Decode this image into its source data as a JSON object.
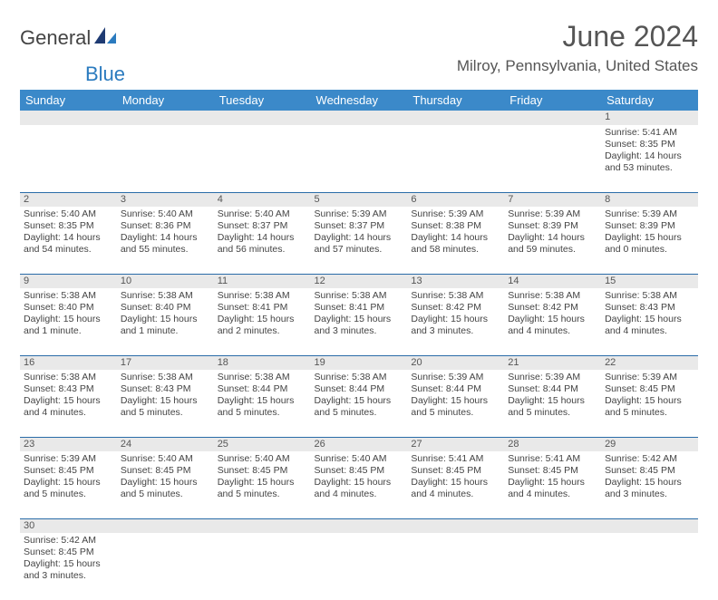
{
  "brand": {
    "part1": "General",
    "part2": "Blue"
  },
  "title": "June 2024",
  "location": "Milroy, Pennsylvania, United States",
  "colors": {
    "header_bg": "#3b89c9",
    "row_divider": "#2a6ca8",
    "daynum_bg": "#e9e9e9",
    "brand_blue": "#2b7bbf",
    "text": "#444444"
  },
  "typography": {
    "title_fontsize": 32,
    "location_fontsize": 17,
    "dayheader_fontsize": 13,
    "cell_fontsize": 10.5
  },
  "calendar": {
    "day_headers": [
      "Sunday",
      "Monday",
      "Tuesday",
      "Wednesday",
      "Thursday",
      "Friday",
      "Saturday"
    ],
    "weeks": [
      [
        null,
        null,
        null,
        null,
        null,
        null,
        {
          "n": "1",
          "sunrise": "5:41 AM",
          "sunset": "8:35 PM",
          "daylight": "14 hours and 53 minutes."
        }
      ],
      [
        {
          "n": "2",
          "sunrise": "5:40 AM",
          "sunset": "8:35 PM",
          "daylight": "14 hours and 54 minutes."
        },
        {
          "n": "3",
          "sunrise": "5:40 AM",
          "sunset": "8:36 PM",
          "daylight": "14 hours and 55 minutes."
        },
        {
          "n": "4",
          "sunrise": "5:40 AM",
          "sunset": "8:37 PM",
          "daylight": "14 hours and 56 minutes."
        },
        {
          "n": "5",
          "sunrise": "5:39 AM",
          "sunset": "8:37 PM",
          "daylight": "14 hours and 57 minutes."
        },
        {
          "n": "6",
          "sunrise": "5:39 AM",
          "sunset": "8:38 PM",
          "daylight": "14 hours and 58 minutes."
        },
        {
          "n": "7",
          "sunrise": "5:39 AM",
          "sunset": "8:39 PM",
          "daylight": "14 hours and 59 minutes."
        },
        {
          "n": "8",
          "sunrise": "5:39 AM",
          "sunset": "8:39 PM",
          "daylight": "15 hours and 0 minutes."
        }
      ],
      [
        {
          "n": "9",
          "sunrise": "5:38 AM",
          "sunset": "8:40 PM",
          "daylight": "15 hours and 1 minute."
        },
        {
          "n": "10",
          "sunrise": "5:38 AM",
          "sunset": "8:40 PM",
          "daylight": "15 hours and 1 minute."
        },
        {
          "n": "11",
          "sunrise": "5:38 AM",
          "sunset": "8:41 PM",
          "daylight": "15 hours and 2 minutes."
        },
        {
          "n": "12",
          "sunrise": "5:38 AM",
          "sunset": "8:41 PM",
          "daylight": "15 hours and 3 minutes."
        },
        {
          "n": "13",
          "sunrise": "5:38 AM",
          "sunset": "8:42 PM",
          "daylight": "15 hours and 3 minutes."
        },
        {
          "n": "14",
          "sunrise": "5:38 AM",
          "sunset": "8:42 PM",
          "daylight": "15 hours and 4 minutes."
        },
        {
          "n": "15",
          "sunrise": "5:38 AM",
          "sunset": "8:43 PM",
          "daylight": "15 hours and 4 minutes."
        }
      ],
      [
        {
          "n": "16",
          "sunrise": "5:38 AM",
          "sunset": "8:43 PM",
          "daylight": "15 hours and 4 minutes."
        },
        {
          "n": "17",
          "sunrise": "5:38 AM",
          "sunset": "8:43 PM",
          "daylight": "15 hours and 5 minutes."
        },
        {
          "n": "18",
          "sunrise": "5:38 AM",
          "sunset": "8:44 PM",
          "daylight": "15 hours and 5 minutes."
        },
        {
          "n": "19",
          "sunrise": "5:38 AM",
          "sunset": "8:44 PM",
          "daylight": "15 hours and 5 minutes."
        },
        {
          "n": "20",
          "sunrise": "5:39 AM",
          "sunset": "8:44 PM",
          "daylight": "15 hours and 5 minutes."
        },
        {
          "n": "21",
          "sunrise": "5:39 AM",
          "sunset": "8:44 PM",
          "daylight": "15 hours and 5 minutes."
        },
        {
          "n": "22",
          "sunrise": "5:39 AM",
          "sunset": "8:45 PM",
          "daylight": "15 hours and 5 minutes."
        }
      ],
      [
        {
          "n": "23",
          "sunrise": "5:39 AM",
          "sunset": "8:45 PM",
          "daylight": "15 hours and 5 minutes."
        },
        {
          "n": "24",
          "sunrise": "5:40 AM",
          "sunset": "8:45 PM",
          "daylight": "15 hours and 5 minutes."
        },
        {
          "n": "25",
          "sunrise": "5:40 AM",
          "sunset": "8:45 PM",
          "daylight": "15 hours and 5 minutes."
        },
        {
          "n": "26",
          "sunrise": "5:40 AM",
          "sunset": "8:45 PM",
          "daylight": "15 hours and 4 minutes."
        },
        {
          "n": "27",
          "sunrise": "5:41 AM",
          "sunset": "8:45 PM",
          "daylight": "15 hours and 4 minutes."
        },
        {
          "n": "28",
          "sunrise": "5:41 AM",
          "sunset": "8:45 PM",
          "daylight": "15 hours and 4 minutes."
        },
        {
          "n": "29",
          "sunrise": "5:42 AM",
          "sunset": "8:45 PM",
          "daylight": "15 hours and 3 minutes."
        }
      ],
      [
        {
          "n": "30",
          "sunrise": "5:42 AM",
          "sunset": "8:45 PM",
          "daylight": "15 hours and 3 minutes."
        },
        null,
        null,
        null,
        null,
        null,
        null
      ]
    ],
    "labels": {
      "sunrise": "Sunrise:",
      "sunset": "Sunset:",
      "daylight": "Daylight:"
    }
  }
}
